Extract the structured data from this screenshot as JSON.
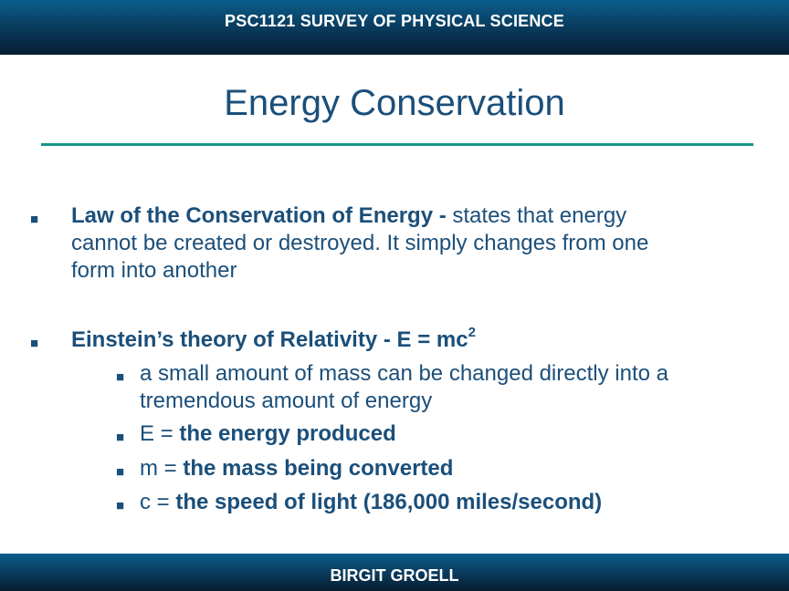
{
  "header": {
    "course": "PSC1121 SURVEY OF PHYSICAL SCIENCE"
  },
  "slide": {
    "title": "Energy Conservation"
  },
  "bullet_symbol": "■",
  "bullets": {
    "law": {
      "term": "Law of the Conservation of Energy -",
      "line1": " states that energy",
      "line2": "cannot be created or destroyed. It simply changes from one",
      "line3": "form into another"
    },
    "einstein": {
      "term": "Einstein’s theory of Relativity - E = mc",
      "superscript": "2",
      "subitems": {
        "mass": {
          "line1": "a small amount of mass can be changed directly into a",
          "line2": "tremendous amount of energy"
        },
        "e": {
          "prefix": "E = ",
          "definition": "the energy produced"
        },
        "m": {
          "prefix": "m = ",
          "definition": "the mass being converted"
        },
        "c": {
          "prefix": "c = ",
          "definition": "the speed of light (186,000 miles/second)"
        }
      }
    }
  },
  "footer": {
    "author": "BIRGIT GROELL"
  },
  "colors": {
    "header_gradient_top": "#0b5d8c",
    "header_gradient_bottom": "#061d30",
    "text": "#1b4f7a",
    "accent_rule": "#14988a"
  }
}
